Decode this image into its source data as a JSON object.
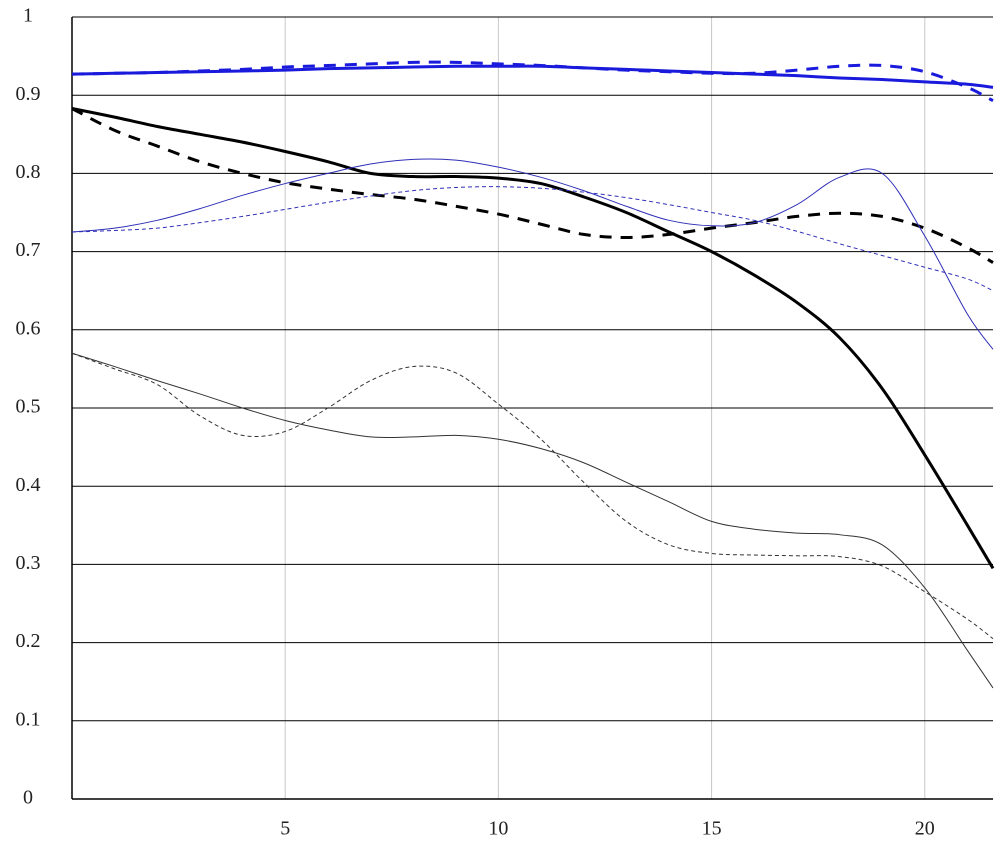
{
  "chart_data": {
    "type": "line",
    "x": [
      0,
      1,
      2,
      3,
      4,
      5,
      6,
      7,
      8,
      9,
      10,
      11,
      12,
      13,
      14,
      15,
      16,
      17,
      18,
      19,
      20,
      21,
      21.6
    ],
    "xlim": [
      0,
      21.6
    ],
    "xticks": [
      5,
      10,
      15,
      20
    ],
    "ylim": [
      0,
      1
    ],
    "yticks": [
      0,
      0.1,
      0.2,
      0.3,
      0.4,
      0.5,
      0.6,
      0.7,
      0.8,
      0.9,
      1
    ],
    "grid": true,
    "series": [
      {
        "color": "#1a1adc",
        "dashed": false,
        "width": 3,
        "values": [
          0.927,
          0.928,
          0.929,
          0.93,
          0.931,
          0.932,
          0.934,
          0.935,
          0.936,
          0.937,
          0.937,
          0.937,
          0.935,
          0.933,
          0.931,
          0.929,
          0.927,
          0.925,
          0.922,
          0.92,
          0.917,
          0.914,
          0.91
        ]
      },
      {
        "color": "#1a1adc",
        "dashed": true,
        "width": 3,
        "values": [
          0.927,
          0.928,
          0.929,
          0.931,
          0.933,
          0.936,
          0.938,
          0.94,
          0.942,
          0.942,
          0.94,
          0.938,
          0.935,
          0.932,
          0.93,
          0.928,
          0.928,
          0.932,
          0.937,
          0.938,
          0.93,
          0.91,
          0.893
        ]
      },
      {
        "color": "#000000",
        "dashed": false,
        "width": 3,
        "values": [
          0.883,
          0.872,
          0.86,
          0.85,
          0.84,
          0.828,
          0.815,
          0.8,
          0.796,
          0.796,
          0.794,
          0.787,
          0.77,
          0.75,
          0.725,
          0.7,
          0.67,
          0.635,
          0.59,
          0.525,
          0.44,
          0.35,
          0.295
        ]
      },
      {
        "color": "#000000",
        "dashed": true,
        "width": 3,
        "values": [
          0.883,
          0.855,
          0.835,
          0.815,
          0.8,
          0.788,
          0.78,
          0.773,
          0.767,
          0.758,
          0.748,
          0.735,
          0.722,
          0.718,
          0.722,
          0.73,
          0.737,
          0.745,
          0.749,
          0.745,
          0.73,
          0.705,
          0.686
        ]
      },
      {
        "color": "#2f2fb8",
        "dashed": false,
        "width": 1,
        "values": [
          0.725,
          0.73,
          0.74,
          0.755,
          0.772,
          0.787,
          0.8,
          0.812,
          0.818,
          0.817,
          0.808,
          0.795,
          0.778,
          0.758,
          0.74,
          0.733,
          0.737,
          0.76,
          0.795,
          0.8,
          0.72,
          0.62,
          0.575
        ]
      },
      {
        "color": "#2f2fb8",
        "dashed": true,
        "width": 1,
        "values": [
          0.725,
          0.727,
          0.73,
          0.737,
          0.745,
          0.754,
          0.763,
          0.771,
          0.778,
          0.782,
          0.783,
          0.781,
          0.776,
          0.769,
          0.76,
          0.75,
          0.74,
          0.726,
          0.71,
          0.695,
          0.68,
          0.665,
          0.65
        ]
      },
      {
        "color": "#333333",
        "dashed": false,
        "width": 1,
        "values": [
          0.57,
          0.553,
          0.535,
          0.518,
          0.5,
          0.484,
          0.472,
          0.463,
          0.463,
          0.465,
          0.46,
          0.448,
          0.43,
          0.405,
          0.38,
          0.355,
          0.345,
          0.34,
          0.338,
          0.325,
          0.27,
          0.19,
          0.142
        ]
      },
      {
        "color": "#333333",
        "dashed": true,
        "width": 1,
        "values": [
          0.57,
          0.55,
          0.53,
          0.49,
          0.465,
          0.47,
          0.5,
          0.535,
          0.553,
          0.545,
          0.505,
          0.46,
          0.405,
          0.355,
          0.325,
          0.314,
          0.312,
          0.311,
          0.31,
          0.298,
          0.265,
          0.23,
          0.205
        ]
      }
    ]
  }
}
